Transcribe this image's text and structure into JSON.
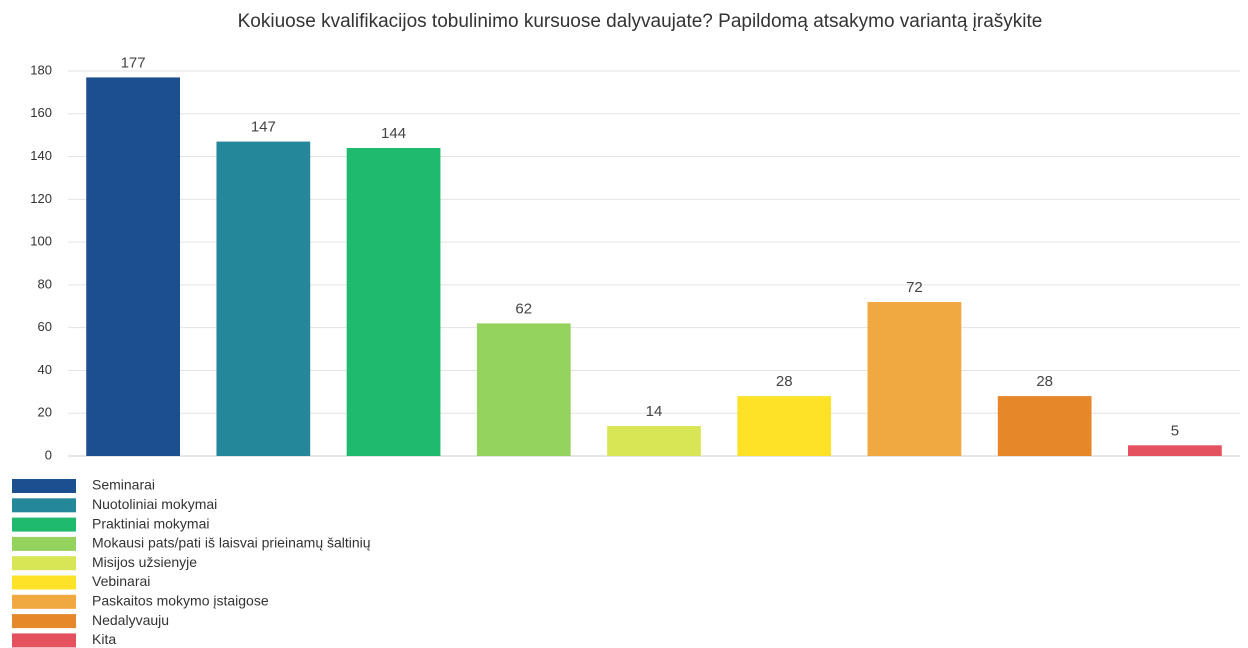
{
  "chart_data": {
    "type": "bar",
    "title": "Kokiuose kvalifikacijos tobulinimo kursuose dalyvaujate? Papildomą atsakymo variantą įrašykite",
    "categories": [
      "Seminarai",
      "Nuotoliniai mokymai",
      "Praktiniai mokymai",
      "Mokausi pats/pati iš laisvai prieinamų šaltinių",
      "Misijos užsienyje",
      "Vebinarai",
      "Paskaitos mokymo įstaigose",
      "Nedalyvauju",
      "Kita"
    ],
    "values": [
      177,
      147,
      144,
      62,
      14,
      28,
      72,
      28,
      5
    ],
    "colors": [
      "#1b4f8e",
      "#25879a",
      "#1fba6d",
      "#95d35f",
      "#d8e655",
      "#fde228",
      "#f0a840",
      "#e6872a",
      "#e45260"
    ],
    "ylim": [
      0,
      180
    ],
    "yticks": [
      0,
      20,
      40,
      60,
      80,
      100,
      120,
      140,
      160,
      180
    ],
    "grid": true,
    "legend": "bottom"
  }
}
